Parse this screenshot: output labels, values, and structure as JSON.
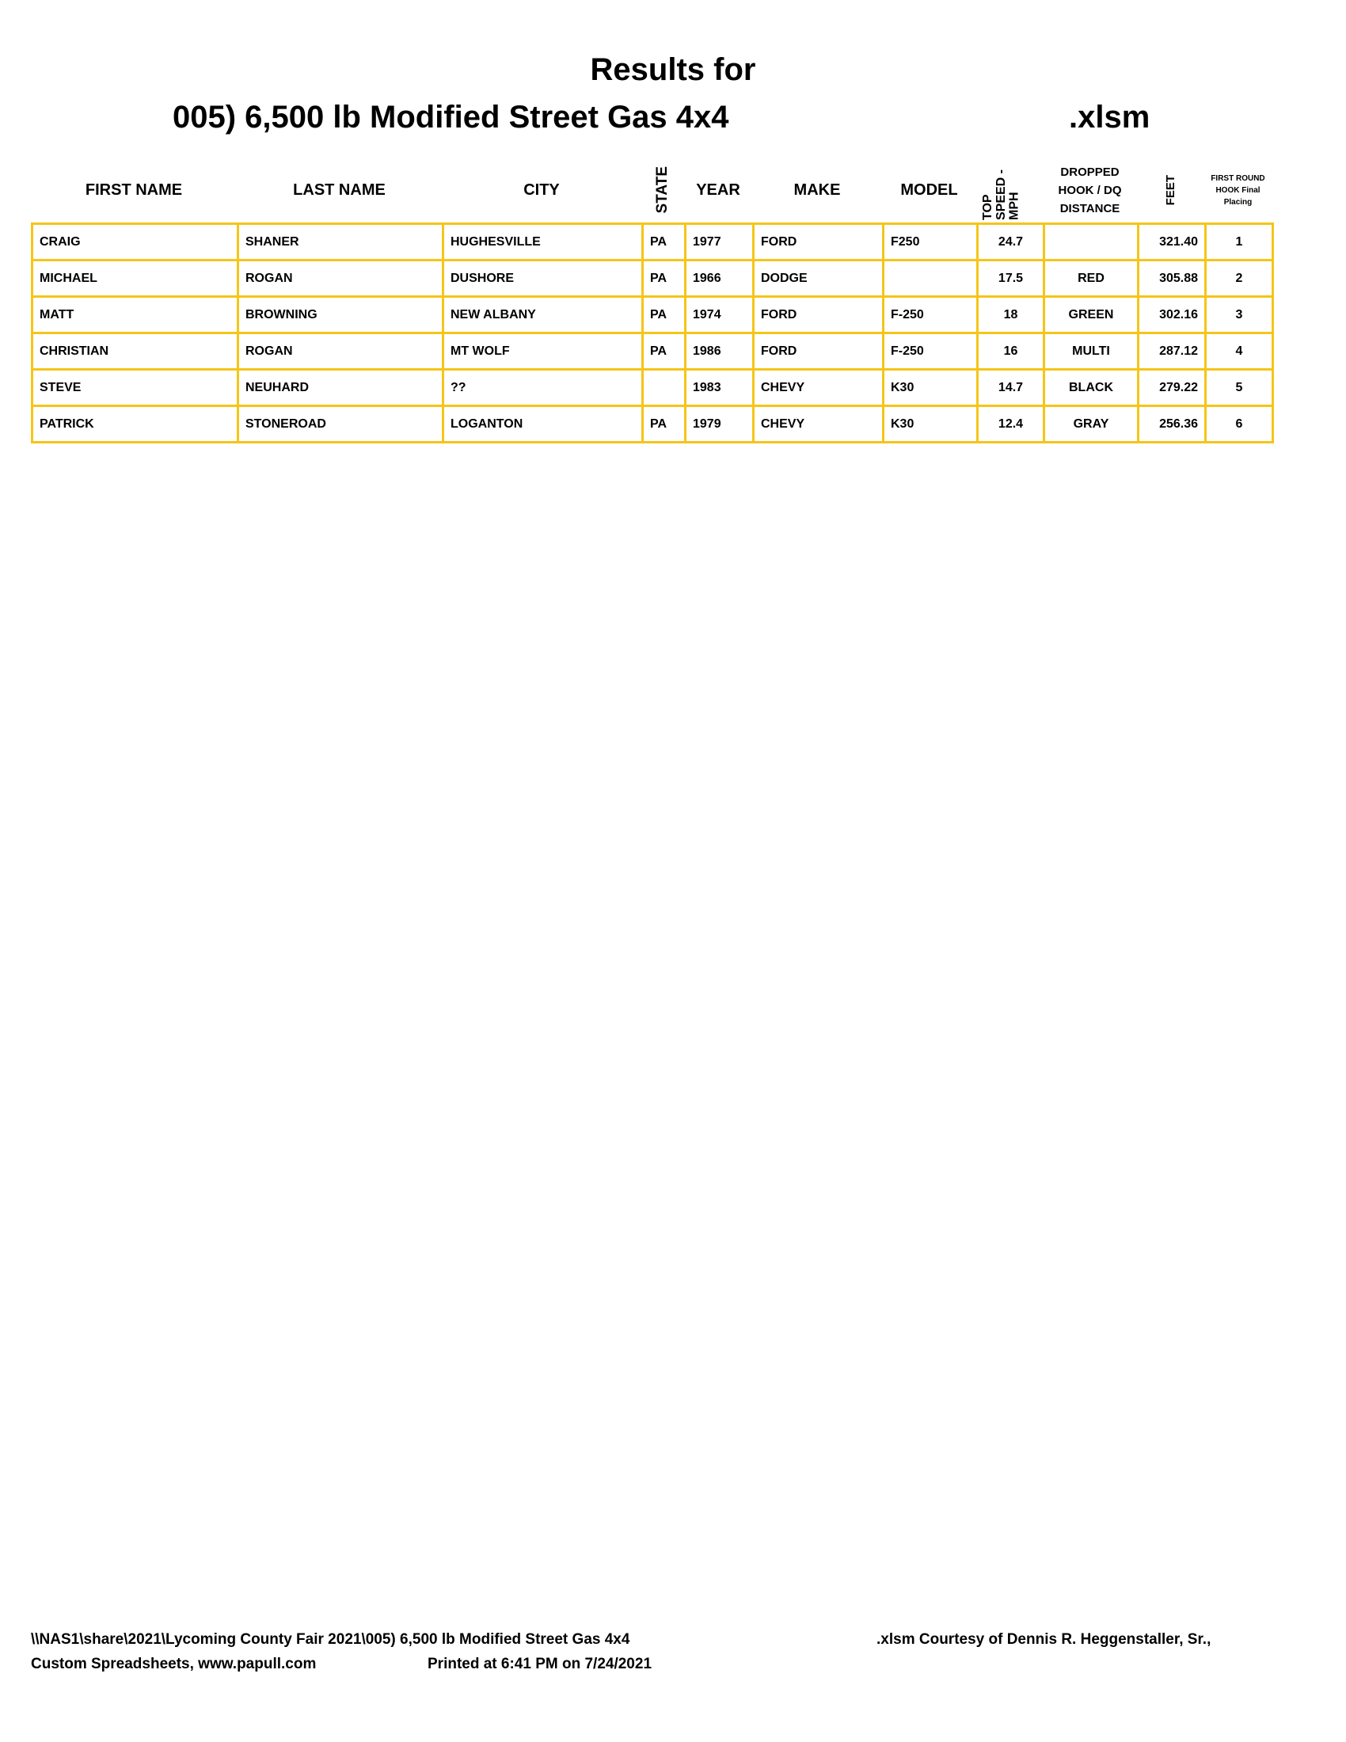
{
  "title": {
    "line1": "Results for",
    "line2": "005) 6,500 lb Modified Street Gas 4x4",
    "ext": ".xlsm"
  },
  "columns": [
    "FIRST NAME",
    "LAST NAME",
    "CITY",
    "STATE",
    "YEAR",
    "MAKE",
    "MODEL",
    "TOP SPEED - MPH",
    "DROPPED HOOK / DQ DISTANCE",
    "FEET",
    "FIRST ROUND HOOK Final Placing"
  ],
  "rows": [
    [
      "CRAIG",
      "SHANER",
      "HUGHESVILLE",
      "PA",
      "1977",
      "FORD",
      "F250",
      "24.7",
      "",
      "321.40",
      "1"
    ],
    [
      "MICHAEL",
      "ROGAN",
      "DUSHORE",
      "PA",
      "1966",
      "DODGE",
      "",
      "17.5",
      "RED",
      "305.88",
      "2"
    ],
    [
      "MATT",
      "BROWNING",
      "NEW ALBANY",
      "PA",
      "1974",
      "FORD",
      "F-250",
      "18",
      "GREEN",
      "302.16",
      "3"
    ],
    [
      "CHRISTIAN",
      "ROGAN",
      "MT WOLF",
      "PA",
      "1986",
      "FORD",
      "F-250",
      "16",
      "MULTI",
      "287.12",
      "4"
    ],
    [
      "STEVE",
      "NEUHARD",
      "??",
      "",
      "1983",
      "CHEVY",
      "K30",
      "14.7",
      "BLACK",
      "279.22",
      "5"
    ],
    [
      "PATRICK",
      "STONEROAD",
      "LOGANTON",
      "PA",
      "1979",
      "CHEVY",
      "K30",
      "12.4",
      "GRAY",
      "256.36",
      "6"
    ]
  ],
  "footer": {
    "path": "\\\\NAS1\\share\\2021\\Lycoming County Fair 2021\\005) 6,500 lb Modified Street Gas 4x4",
    "courtesy": ".xlsm  Courtesy of Dennis R. Heggenstaller, Sr.,",
    "custom": "Custom Spreadsheets, www.papull.com",
    "printed": "Printed at 6:41 PM on 7/24/2021"
  },
  "colors": {
    "border": "#f5c518"
  }
}
